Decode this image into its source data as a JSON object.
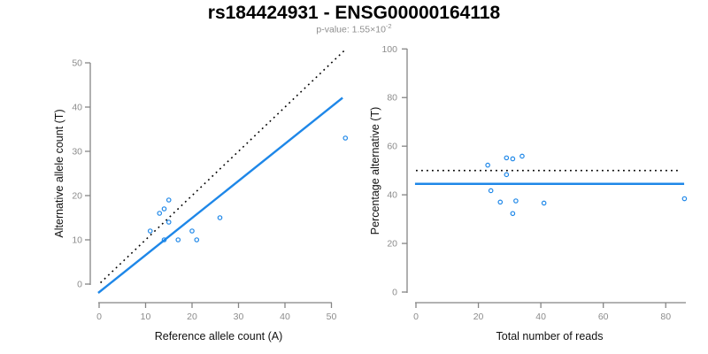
{
  "figure": {
    "title": "rs184424931 - ENSG00000164118",
    "subtitle_text": "p-value: 1.55×10",
    "subtitle_sup": "-2"
  },
  "colors": {
    "accent_blue": "#1E87E8",
    "axis_gray": "#858585",
    "tick_label_gray": "#8C8C8C",
    "line_black": "#000000"
  },
  "chart_data": [
    {
      "type": "scatter",
      "panel": "left",
      "xlabel": "Reference allele count (A)",
      "ylabel": "Alternative allele count (T)",
      "xlim": [
        0,
        50
      ],
      "ylim": [
        0,
        50
      ],
      "xticks": [
        0,
        10,
        20,
        30,
        40,
        50
      ],
      "yticks": [
        0,
        10,
        20,
        30,
        40,
        50
      ],
      "grid": false,
      "marker": "open-circle",
      "marker_color": "#1E87E8",
      "points": [
        [
          11,
          12
        ],
        [
          13,
          16
        ],
        [
          14,
          17
        ],
        [
          15,
          19
        ],
        [
          15,
          14
        ],
        [
          14,
          10
        ],
        [
          17,
          10
        ],
        [
          20,
          12
        ],
        [
          21,
          10
        ],
        [
          26,
          15
        ],
        [
          53,
          33
        ]
      ],
      "lines": [
        {
          "label": "identity-line",
          "style": "dotted",
          "color": "#000000",
          "from": [
            0.3,
            0.3
          ],
          "to": [
            53,
            53
          ]
        },
        {
          "label": "fit-line",
          "style": "solid",
          "color": "#1E87E8",
          "from": [
            -0.2,
            -2.0
          ],
          "to": [
            52.4,
            42.1
          ]
        }
      ]
    },
    {
      "type": "scatter",
      "panel": "right",
      "xlabel": "Total number of reads",
      "ylabel": "Percentage alternative (T)",
      "xlim": [
        0,
        80
      ],
      "ylim": [
        0,
        100
      ],
      "xticks": [
        0,
        20,
        40,
        60,
        80
      ],
      "yticks": [
        0,
        20,
        40,
        60,
        80,
        100
      ],
      "grid": false,
      "marker": "open-circle",
      "marker_color": "#1E87E8",
      "points": [
        [
          23,
          52.2
        ],
        [
          29,
          55.2
        ],
        [
          31,
          54.8
        ],
        [
          34,
          55.9
        ],
        [
          29,
          48.3
        ],
        [
          24,
          41.7
        ],
        [
          27,
          37.0
        ],
        [
          32,
          37.5
        ],
        [
          31,
          32.3
        ],
        [
          41,
          36.6
        ],
        [
          86,
          38.4
        ]
      ],
      "lines": [
        {
          "label": "expected-50-percent-line",
          "style": "dotted",
          "color": "#000000",
          "from": [
            0,
            50
          ],
          "to": [
            84,
            50
          ]
        },
        {
          "label": "mean-percent-line",
          "style": "solid",
          "color": "#1E87E8",
          "from": [
            -0.3,
            44.5
          ],
          "to": [
            85.9,
            44.5
          ]
        }
      ]
    }
  ]
}
